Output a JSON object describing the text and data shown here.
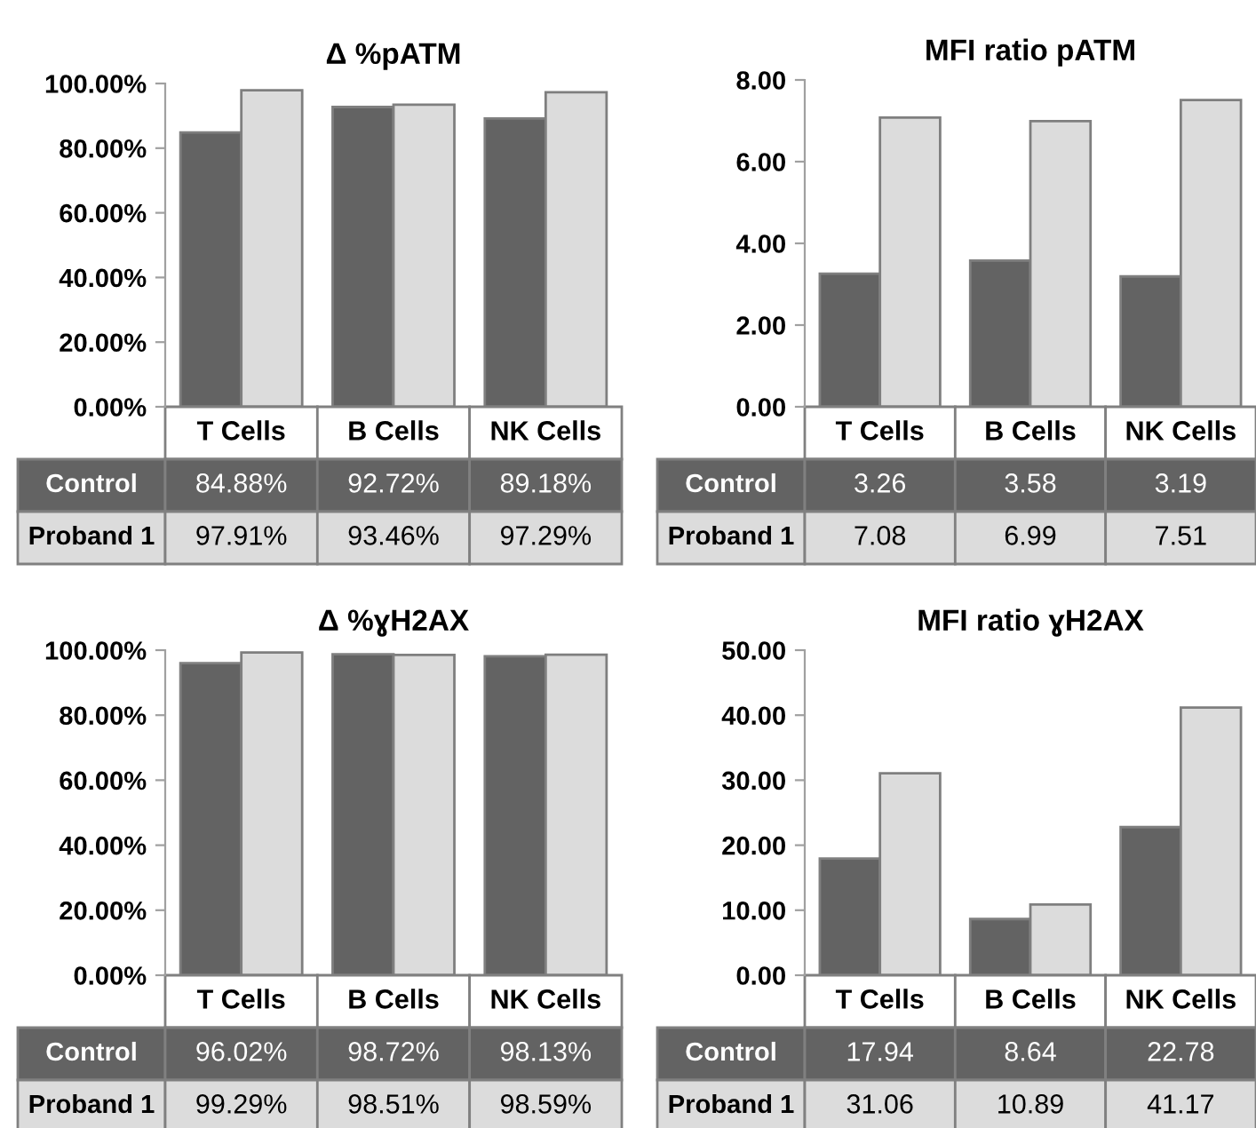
{
  "chart_data": [
    {
      "type": "bar",
      "title": "Δ %pATM",
      "categories": [
        "T Cells",
        "B Cells",
        "NK Cells"
      ],
      "ylim": [
        0,
        100
      ],
      "yticks": [
        {
          "value": 0,
          "label": "0.00%"
        },
        {
          "value": 20,
          "label": "20.00%"
        },
        {
          "value": 40,
          "label": "40.00%"
        },
        {
          "value": 60,
          "label": "60.00%"
        },
        {
          "value": 80,
          "label": "80.00%"
        },
        {
          "value": 100,
          "label": "100.00%"
        }
      ],
      "legend": false,
      "grid": false,
      "series": [
        {
          "name": "Control",
          "color": "#636363",
          "values": [
            84.88,
            92.72,
            89.18
          ],
          "value_labels": [
            "84.88%",
            "92.72%",
            "89.18%"
          ]
        },
        {
          "name": "Proband 1",
          "color": "#dcdcdc",
          "values": [
            97.91,
            93.46,
            97.29
          ],
          "value_labels": [
            "97.91%",
            "93.46%",
            "97.29%"
          ]
        }
      ]
    },
    {
      "type": "bar",
      "title": "MFI ratio pATM",
      "categories": [
        "T Cells",
        "B Cells",
        "NK Cells"
      ],
      "ylim": [
        0,
        8
      ],
      "yticks": [
        {
          "value": 0,
          "label": "0.00"
        },
        {
          "value": 2,
          "label": "2.00"
        },
        {
          "value": 4,
          "label": "4.00"
        },
        {
          "value": 6,
          "label": "6.00"
        },
        {
          "value": 8,
          "label": "8.00"
        }
      ],
      "legend": false,
      "grid": false,
      "series": [
        {
          "name": "Control",
          "color": "#636363",
          "values": [
            3.26,
            3.58,
            3.19
          ],
          "value_labels": [
            "3.26",
            "3.58",
            "3.19"
          ]
        },
        {
          "name": "Proband 1",
          "color": "#dcdcdc",
          "values": [
            7.08,
            6.99,
            7.51
          ],
          "value_labels": [
            "7.08",
            "6.99",
            "7.51"
          ]
        }
      ]
    },
    {
      "type": "bar",
      "title": "Δ %ɣH2AX",
      "categories": [
        "T Cells",
        "B Cells",
        "NK Cells"
      ],
      "ylim": [
        0,
        100
      ],
      "yticks": [
        {
          "value": 0,
          "label": "0.00%"
        },
        {
          "value": 20,
          "label": "20.00%"
        },
        {
          "value": 40,
          "label": "40.00%"
        },
        {
          "value": 60,
          "label": "60.00%"
        },
        {
          "value": 80,
          "label": "80.00%"
        },
        {
          "value": 100,
          "label": "100.00%"
        }
      ],
      "legend": false,
      "grid": false,
      "series": [
        {
          "name": "Control",
          "color": "#636363",
          "values": [
            96.02,
            98.72,
            98.13
          ],
          "value_labels": [
            "96.02%",
            "98.72%",
            "98.13%"
          ]
        },
        {
          "name": "Proband 1",
          "color": "#dcdcdc",
          "values": [
            99.29,
            98.51,
            98.59
          ],
          "value_labels": [
            "99.29%",
            "98.51%",
            "98.59%"
          ]
        }
      ]
    },
    {
      "type": "bar",
      "title": "MFI ratio ɣH2AX",
      "categories": [
        "T Cells",
        "B Cells",
        "NK Cells"
      ],
      "ylim": [
        0,
        50
      ],
      "yticks": [
        {
          "value": 0,
          "label": "0.00"
        },
        {
          "value": 10,
          "label": "10.00"
        },
        {
          "value": 20,
          "label": "20.00"
        },
        {
          "value": 30,
          "label": "30.00"
        },
        {
          "value": 40,
          "label": "40.00"
        },
        {
          "value": 50,
          "label": "50.00"
        }
      ],
      "legend": false,
      "grid": false,
      "series": [
        {
          "name": "Control",
          "color": "#636363",
          "values": [
            17.94,
            8.64,
            22.78
          ],
          "value_labels": [
            "17.94",
            "8.64",
            "22.78"
          ]
        },
        {
          "name": "Proband 1",
          "color": "#dcdcdc",
          "values": [
            31.06,
            10.89,
            41.17
          ],
          "value_labels": [
            "31.06",
            "10.89",
            "41.17"
          ]
        }
      ]
    }
  ]
}
